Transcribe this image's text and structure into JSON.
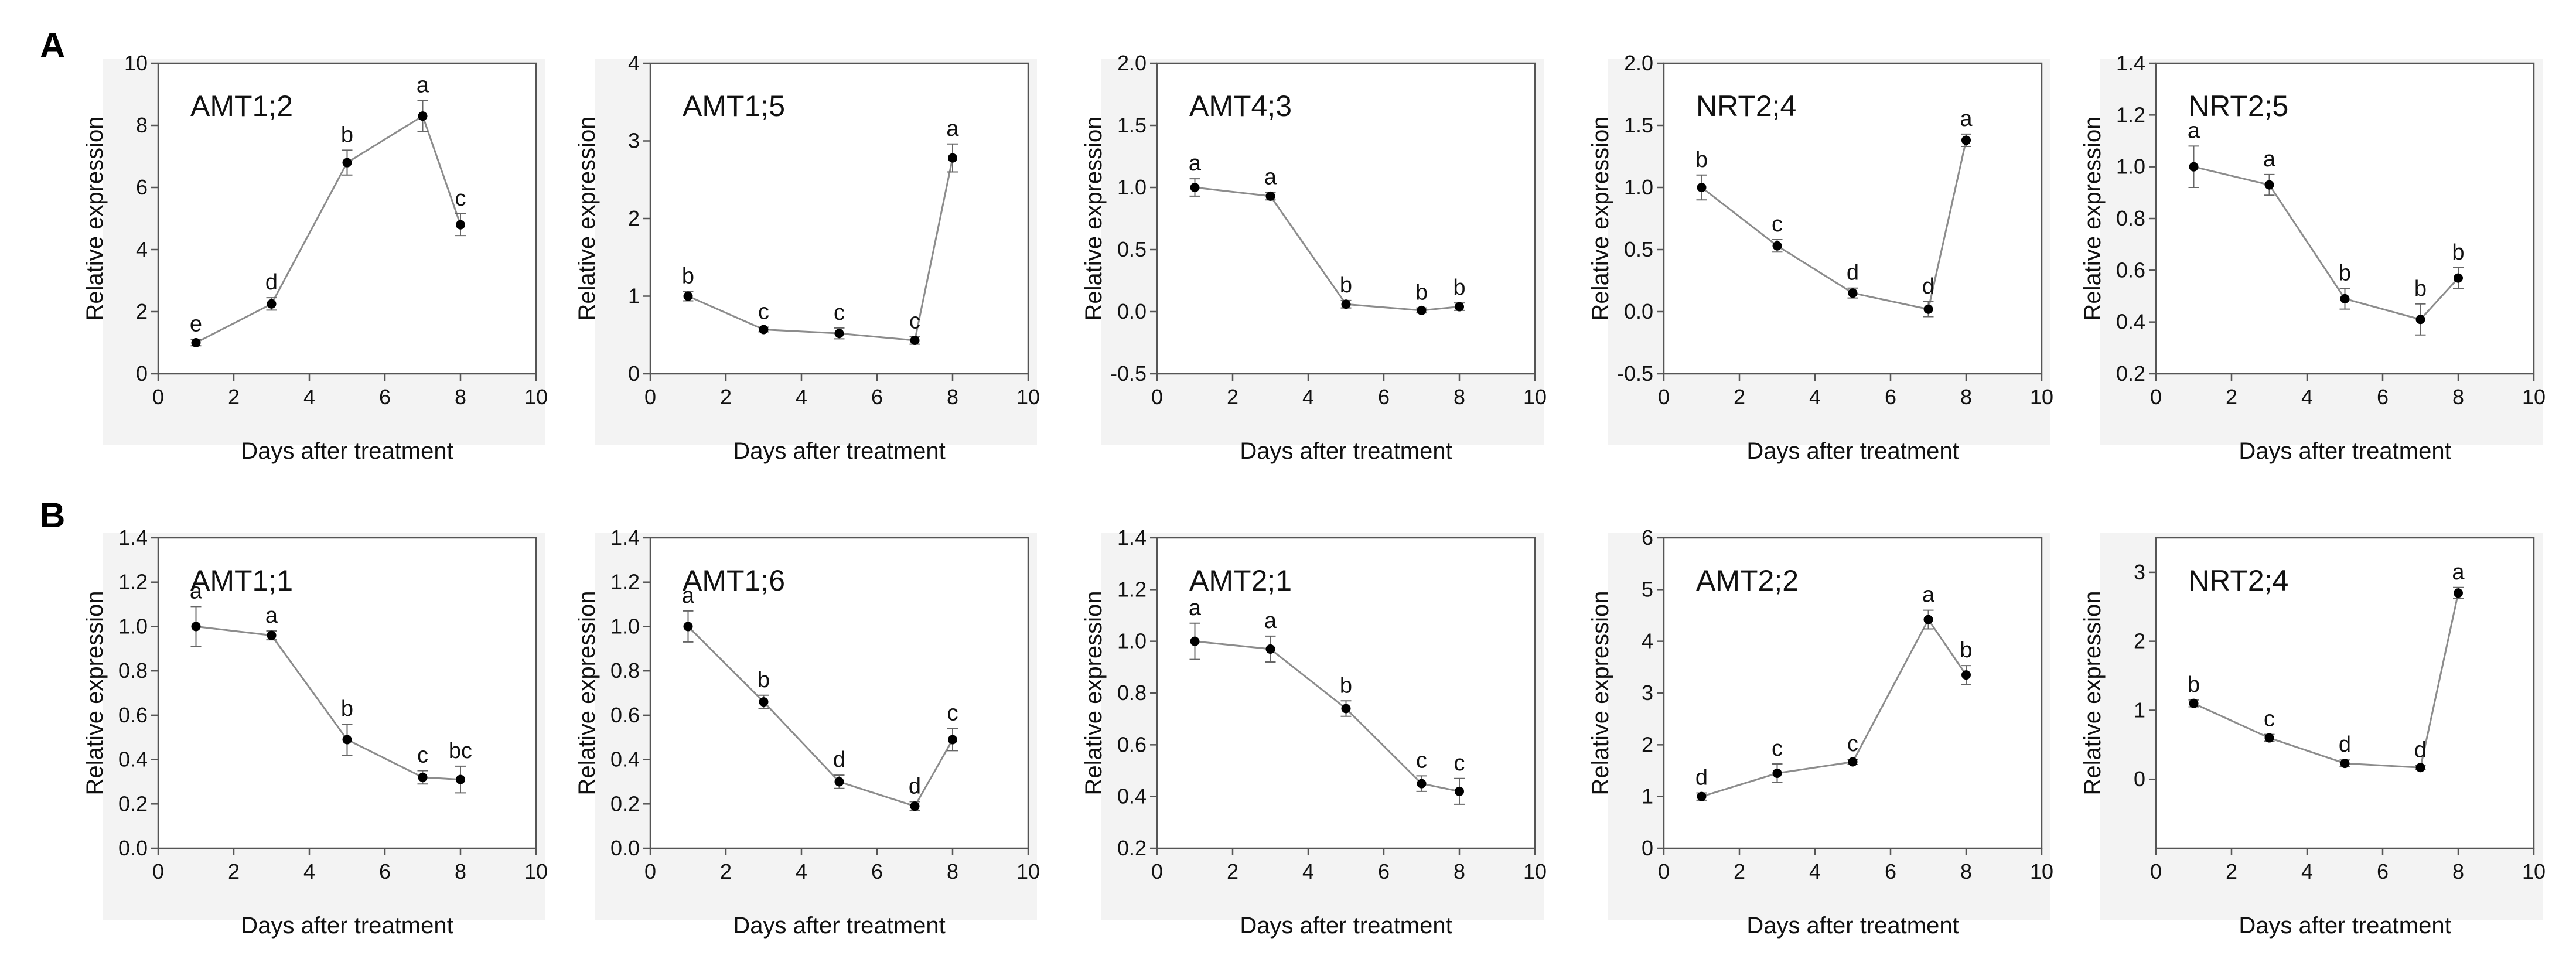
{
  "figure": {
    "panel_labels": {
      "A": "A",
      "B": "B"
    }
  },
  "chart_data": [
    {
      "row": "A",
      "type": "line",
      "title": "AMT1;2",
      "xlabel": "Days after treatment",
      "ylabel": "Relative expression",
      "xlim": [
        0,
        10
      ],
      "xticks": [
        0,
        2,
        4,
        6,
        8,
        10
      ],
      "ylim": [
        0,
        10
      ],
      "yticks": [
        0,
        2,
        4,
        6,
        8,
        10
      ],
      "ytick_labels": [
        "0",
        "2",
        "4",
        "6",
        "8",
        "10"
      ],
      "x": [
        1,
        3,
        5,
        7,
        8
      ],
      "y": [
        1.0,
        2.25,
        6.8,
        8.3,
        4.8
      ],
      "err": [
        0.1,
        0.2,
        0.4,
        0.5,
        0.35
      ],
      "letters": [
        "e",
        "d",
        "b",
        "a",
        "c"
      ]
    },
    {
      "row": "A",
      "type": "line",
      "title": "AMT1;5",
      "xlabel": "Days after treatment",
      "ylabel": "Relative expression",
      "xlim": [
        0,
        10
      ],
      "xticks": [
        0,
        2,
        4,
        6,
        8,
        10
      ],
      "ylim": [
        0,
        4
      ],
      "yticks": [
        0,
        1,
        2,
        3,
        4
      ],
      "ytick_labels": [
        "0",
        "1",
        "2",
        "3",
        "4"
      ],
      "x": [
        1,
        3,
        5,
        7,
        8
      ],
      "y": [
        1.0,
        0.57,
        0.52,
        0.43,
        2.78
      ],
      "err": [
        0.06,
        0.03,
        0.07,
        0.05,
        0.18
      ],
      "letters": [
        "b",
        "c",
        "c",
        "c",
        "a"
      ]
    },
    {
      "row": "A",
      "type": "line",
      "title": "AMT4;3",
      "xlabel": "Days after treatment",
      "ylabel": "Relative expression",
      "xlim": [
        0,
        10
      ],
      "xticks": [
        0,
        2,
        4,
        6,
        8,
        10
      ],
      "ylim": [
        -0.5,
        2.0
      ],
      "yticks": [
        -0.5,
        0,
        0.5,
        1.0,
        1.5,
        2.0
      ],
      "ytick_labels": [
        "-0.5",
        "0.0",
        "0.5",
        "1.0",
        "1.5",
        "2.0"
      ],
      "x": [
        1,
        3,
        5,
        7,
        8
      ],
      "y": [
        1.0,
        0.93,
        0.06,
        0.01,
        0.04
      ],
      "err": [
        0.07,
        0.03,
        0.03,
        0.02,
        0.03
      ],
      "letters": [
        "a",
        "a",
        "b",
        "b",
        "b"
      ]
    },
    {
      "row": "A",
      "type": "line",
      "title": "NRT2;4",
      "xlabel": "Days after treatment",
      "ylabel": "Relative expression",
      "xlim": [
        0,
        10
      ],
      "xticks": [
        0,
        2,
        4,
        6,
        8,
        10
      ],
      "ylim": [
        -0.5,
        2.0
      ],
      "yticks": [
        -0.5,
        0,
        0.5,
        1.0,
        1.5,
        2.0
      ],
      "ytick_labels": [
        "-0.5",
        "0.0",
        "0.5",
        "1.0",
        "1.5",
        "2.0"
      ],
      "x": [
        1,
        3,
        5,
        7,
        8
      ],
      "y": [
        1.0,
        0.53,
        0.15,
        0.02,
        1.38
      ],
      "err": [
        0.1,
        0.05,
        0.04,
        0.06,
        0.05
      ],
      "letters": [
        "b",
        "c",
        "d",
        "d",
        "a"
      ]
    },
    {
      "row": "A",
      "type": "line",
      "title": "NRT2;5",
      "xlabel": "Days after treatment",
      "ylabel": "Relative expression",
      "xlim": [
        0,
        10
      ],
      "xticks": [
        0,
        2,
        4,
        6,
        8,
        10
      ],
      "ylim": [
        0.2,
        1.4
      ],
      "yticks": [
        0.2,
        0.4,
        0.6,
        0.8,
        1.0,
        1.2,
        1.4
      ],
      "ytick_labels": [
        "0.2",
        "0.4",
        "0.6",
        "0.8",
        "1.0",
        "1.2",
        "1.4"
      ],
      "x": [
        1,
        3,
        5,
        7,
        8
      ],
      "y": [
        1.0,
        0.93,
        0.49,
        0.41,
        0.57
      ],
      "err": [
        0.08,
        0.04,
        0.04,
        0.06,
        0.04
      ],
      "letters": [
        "a",
        "a",
        "b",
        "b",
        "b"
      ]
    },
    {
      "row": "B",
      "type": "line",
      "title": "AMT1;1",
      "xlabel": "Days after treatment",
      "ylabel": "Relative expression",
      "xlim": [
        0,
        10
      ],
      "xticks": [
        0,
        2,
        4,
        6,
        8,
        10
      ],
      "ylim": [
        0,
        1.4
      ],
      "yticks": [
        0,
        0.2,
        0.4,
        0.6,
        0.8,
        1.0,
        1.2,
        1.4
      ],
      "ytick_labels": [
        "0.0",
        "0.2",
        "0.4",
        "0.6",
        "0.8",
        "1.0",
        "1.2",
        "1.4"
      ],
      "x": [
        1,
        3,
        5,
        7,
        8
      ],
      "y": [
        1.0,
        0.96,
        0.49,
        0.32,
        0.31
      ],
      "err": [
        0.09,
        0.02,
        0.07,
        0.03,
        0.06
      ],
      "letters": [
        "a",
        "a",
        "b",
        "c",
        "bc"
      ]
    },
    {
      "row": "B",
      "type": "line",
      "title": "AMT1;6",
      "xlabel": "Days after treatment",
      "ylabel": "Relative expression",
      "xlim": [
        0,
        10
      ],
      "xticks": [
        0,
        2,
        4,
        6,
        8,
        10
      ],
      "ylim": [
        0,
        1.4
      ],
      "yticks": [
        0,
        0.2,
        0.4,
        0.6,
        0.8,
        1.0,
        1.2,
        1.4
      ],
      "ytick_labels": [
        "0.0",
        "0.2",
        "0.4",
        "0.6",
        "0.8",
        "1.0",
        "1.2",
        "1.4"
      ],
      "x": [
        1,
        3,
        5,
        7,
        8
      ],
      "y": [
        1.0,
        0.66,
        0.3,
        0.19,
        0.49
      ],
      "err": [
        0.07,
        0.03,
        0.03,
        0.02,
        0.05
      ],
      "letters": [
        "a",
        "b",
        "d",
        "d",
        "c"
      ]
    },
    {
      "row": "B",
      "type": "line",
      "title": "AMT2;1",
      "xlabel": "Days after treatment",
      "ylabel": "Relative expression",
      "xlim": [
        0,
        10
      ],
      "xticks": [
        0,
        2,
        4,
        6,
        8,
        10
      ],
      "ylim": [
        0.2,
        1.4
      ],
      "yticks": [
        0.2,
        0.4,
        0.6,
        0.8,
        1.0,
        1.2,
        1.4
      ],
      "ytick_labels": [
        "0.2",
        "0.4",
        "0.6",
        "0.8",
        "1.0",
        "1.2",
        "1.4"
      ],
      "x": [
        1,
        3,
        5,
        7,
        8
      ],
      "y": [
        1.0,
        0.97,
        0.74,
        0.45,
        0.42
      ],
      "err": [
        0.07,
        0.05,
        0.03,
        0.03,
        0.05
      ],
      "letters": [
        "a",
        "a",
        "b",
        "c",
        "c"
      ]
    },
    {
      "row": "B",
      "type": "line",
      "title": "AMT2;2",
      "xlabel": "Days after treatment",
      "ylabel": "Relative expression",
      "xlim": [
        0,
        10
      ],
      "xticks": [
        0,
        2,
        4,
        6,
        8,
        10
      ],
      "ylim": [
        0,
        6
      ],
      "yticks": [
        0,
        1,
        2,
        3,
        4,
        5,
        6
      ],
      "ytick_labels": [
        "0",
        "1",
        "2",
        "3",
        "4",
        "5",
        "6"
      ],
      "x": [
        1,
        3,
        5,
        7,
        8
      ],
      "y": [
        1.0,
        1.45,
        1.67,
        4.42,
        3.35
      ],
      "err": [
        0.07,
        0.18,
        0.05,
        0.18,
        0.18
      ],
      "letters": [
        "d",
        "c",
        "c",
        "a",
        "b"
      ]
    },
    {
      "row": "B",
      "type": "line",
      "title": "NRT2;4",
      "xlabel": "Days after treatment",
      "ylabel": "Relative expression",
      "xlim": [
        0,
        10
      ],
      "xticks": [
        0,
        2,
        4,
        6,
        8,
        10
      ],
      "ylim": [
        -1,
        3.5
      ],
      "yticks": [
        0,
        1,
        2,
        3
      ],
      "ytick_labels": [
        "0",
        "1",
        "2",
        "3"
      ],
      "x": [
        1,
        3,
        5,
        7,
        8
      ],
      "y": [
        1.1,
        0.6,
        0.23,
        0.17,
        2.7
      ],
      "err": [
        0.05,
        0.05,
        0.05,
        0.03,
        0.08
      ],
      "letters": [
        "b",
        "c",
        "d",
        "d",
        "a"
      ]
    }
  ]
}
